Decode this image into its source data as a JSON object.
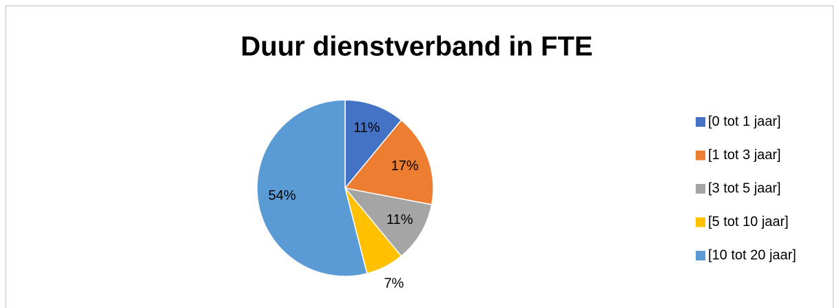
{
  "chart_data": {
    "type": "pie",
    "title": "Duur dienstverband in FTE",
    "categories": [
      "[0 tot 1 jaar]",
      "[1 tot 3 jaar]",
      "[3 tot 5 jaar]",
      "[5 tot 10 jaar]",
      "[10 tot 20 jaar]"
    ],
    "values": [
      11,
      17,
      11,
      7,
      54
    ],
    "value_labels": [
      "11%",
      "17%",
      "11%",
      "7%",
      "54%"
    ],
    "colors": [
      "#4472c4",
      "#ed7d31",
      "#a5a5a5",
      "#ffc000",
      "#5b9bd5"
    ],
    "legend": "right"
  }
}
